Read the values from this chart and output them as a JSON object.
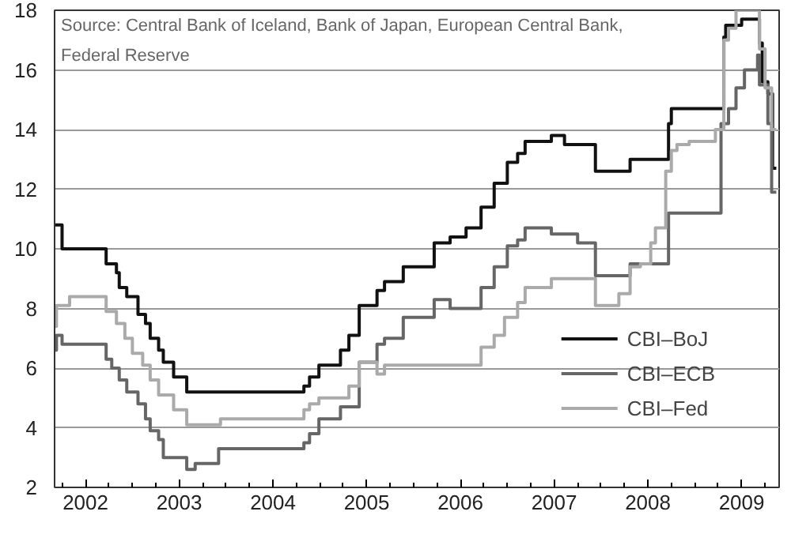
{
  "chart_data": {
    "type": "step",
    "annotations": [
      "Source: Central Bank of Iceland, Bank of Japan, European Central Bank,\nFederal Reserve"
    ],
    "xlim": [
      2001.67,
      2009.4
    ],
    "xticks": [
      2002,
      2003,
      2004,
      2005,
      2006,
      2007,
      2008,
      2009
    ],
    "ylim": [
      2,
      18
    ],
    "yticks": [
      2,
      4,
      6,
      8,
      10,
      12,
      14,
      16,
      18
    ],
    "grid": "y",
    "legend": "right",
    "line_style": "solid",
    "series": [
      {
        "name": "CBI–BoJ",
        "color": "#111111",
        "x": [
          2001.67,
          2001.75,
          2002.22,
          2002.33,
          2002.36,
          2002.44,
          2002.56,
          2002.64,
          2002.69,
          2002.78,
          2002.83,
          2002.94,
          2003.08,
          2004.33,
          2004.39,
          2004.49,
          2004.72,
          2004.81,
          2004.92,
          2005.11,
          2005.19,
          2005.39,
          2005.72,
          2005.89,
          2006.06,
          2006.22,
          2006.36,
          2006.5,
          2006.61,
          2006.69,
          2006.97,
          2007.11,
          2007.44,
          2007.81,
          2008.22,
          2008.25,
          2008.81,
          2008.83,
          2009.0,
          2009.19,
          2009.22,
          2009.28,
          2009.33,
          2009.37
        ],
        "values": [
          10.8,
          10.0,
          9.5,
          9.2,
          8.7,
          8.4,
          7.8,
          7.5,
          7.0,
          6.6,
          6.2,
          5.7,
          5.2,
          5.4,
          5.7,
          6.1,
          6.6,
          7.1,
          8.1,
          8.6,
          8.9,
          9.4,
          10.2,
          10.4,
          10.7,
          11.4,
          12.2,
          12.9,
          13.2,
          13.6,
          13.8,
          13.5,
          12.6,
          13.0,
          14.2,
          14.7,
          17.1,
          17.5,
          17.7,
          16.9,
          15.6,
          15.2,
          12.7,
          12.7
        ]
      },
      {
        "name": "CBI–ECB",
        "color": "#666666",
        "x": [
          2001.67,
          2001.69,
          2001.75,
          2002.22,
          2002.28,
          2002.36,
          2002.44,
          2002.56,
          2002.64,
          2002.69,
          2002.78,
          2002.83,
          2003.08,
          2003.17,
          2003.42,
          2004.33,
          2004.39,
          2004.49,
          2004.72,
          2004.92,
          2005.11,
          2005.19,
          2005.39,
          2005.72,
          2005.89,
          2006.06,
          2006.22,
          2006.36,
          2006.5,
          2006.61,
          2006.69,
          2006.97,
          2007.25,
          2007.44,
          2007.81,
          2008.22,
          2008.78,
          2008.86,
          2008.94,
          2009.03,
          2009.17,
          2009.19,
          2009.28,
          2009.32,
          2009.37
        ],
        "values": [
          6.6,
          7.1,
          6.8,
          6.3,
          6.0,
          5.6,
          5.2,
          4.8,
          4.3,
          3.9,
          3.6,
          3.0,
          2.6,
          2.8,
          3.3,
          3.5,
          3.8,
          4.3,
          4.7,
          6.2,
          6.8,
          7.0,
          7.7,
          8.3,
          8.0,
          8.0,
          8.7,
          9.4,
          10.1,
          10.3,
          10.7,
          10.5,
          10.2,
          9.1,
          9.5,
          11.2,
          14.2,
          14.7,
          15.4,
          16.0,
          16.5,
          15.5,
          14.2,
          11.9,
          11.9
        ]
      },
      {
        "name": "CBI–Fed",
        "color": "#aaaaaa",
        "x": [
          2001.67,
          2001.69,
          2001.83,
          2002.22,
          2002.33,
          2002.42,
          2002.5,
          2002.61,
          2002.69,
          2002.78,
          2002.94,
          2003.08,
          2003.44,
          2004.33,
          2004.39,
          2004.49,
          2004.72,
          2004.81,
          2004.92,
          2005.11,
          2005.19,
          2006.22,
          2006.36,
          2006.47,
          2006.61,
          2006.69,
          2006.97,
          2007.44,
          2007.69,
          2007.81,
          2007.92,
          2008.03,
          2008.08,
          2008.19,
          2008.25,
          2008.31,
          2008.44,
          2008.72,
          2008.81,
          2008.86,
          2008.94,
          2009.19,
          2009.25,
          2009.32,
          2009.37
        ],
        "values": [
          7.4,
          8.1,
          8.4,
          7.9,
          7.5,
          7.0,
          6.5,
          6.1,
          5.6,
          5.1,
          4.6,
          4.1,
          4.3,
          4.6,
          4.8,
          5.0,
          5.0,
          5.4,
          6.2,
          5.8,
          6.1,
          6.7,
          7.1,
          7.7,
          8.2,
          8.7,
          9.0,
          8.1,
          8.5,
          9.4,
          9.5,
          10.2,
          10.7,
          12.6,
          13.3,
          13.5,
          13.6,
          14.0,
          17.0,
          17.4,
          18.0,
          16.7,
          15.4,
          14.0,
          14.0
        ]
      }
    ]
  }
}
